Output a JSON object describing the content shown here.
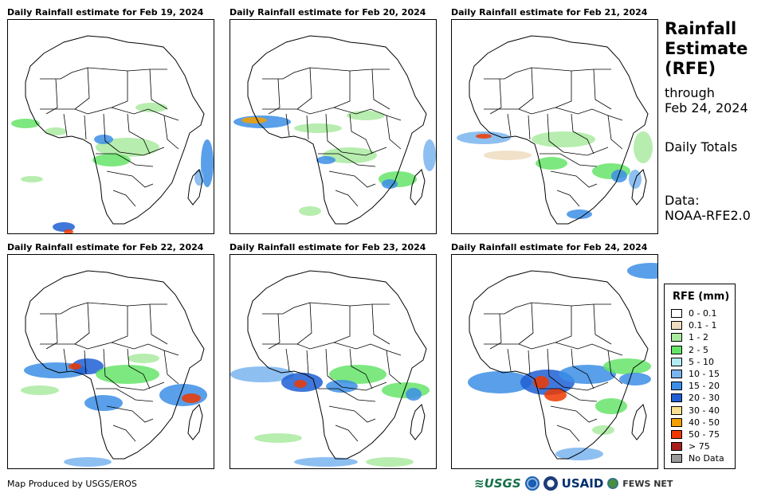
{
  "panels": [
    {
      "title": "Daily Rainfall estimate for Feb 19, 2024"
    },
    {
      "title": "Daily Rainfall estimate for Feb 20, 2024"
    },
    {
      "title": "Daily Rainfall estimate for Feb 21, 2024"
    },
    {
      "title": "Daily Rainfall estimate for Feb 22, 2024"
    },
    {
      "title": "Daily Rainfall estimate for Feb 23, 2024"
    },
    {
      "title": "Daily Rainfall estimate for Feb 24, 2024"
    }
  ],
  "side": {
    "title_line1": "Rainfall",
    "title_line2": "Estimate",
    "title_line3": "(RFE)",
    "through": "through",
    "through_date": "Feb 24, 2024",
    "totals": "Daily Totals",
    "data_label": "Data:",
    "data_source": "NOAA-RFE2.0"
  },
  "legend": {
    "title": "RFE (mm)",
    "items": [
      {
        "label": "0 - 0.1",
        "color": "#ffffff"
      },
      {
        "label": "0.1 - 1",
        "color": "#eedcc0"
      },
      {
        "label": "1 - 2",
        "color": "#aaeaa0"
      },
      {
        "label": "2 - 5",
        "color": "#66e46a"
      },
      {
        "label": "5 - 10",
        "color": "#b4ecf4"
      },
      {
        "label": "10 - 15",
        "color": "#7ab4ee"
      },
      {
        "label": "15 - 20",
        "color": "#3c8ee6"
      },
      {
        "label": "20 - 30",
        "color": "#1f5fd4"
      },
      {
        "label": "30 - 40",
        "color": "#f8e090"
      },
      {
        "label": "40 - 50",
        "color": "#f4a000"
      },
      {
        "label": "50 - 75",
        "color": "#ee3800"
      },
      {
        "label": "> 75",
        "color": "#a81e1e"
      },
      {
        "label": "No Data",
        "color": "#9a9a9a"
      }
    ]
  },
  "footer": {
    "produced_by": "Map Produced by USGS/EROS",
    "logo_usgs": "≋USGS",
    "logo_usaid": "USAID",
    "logo_fews": "FEWS NET"
  }
}
